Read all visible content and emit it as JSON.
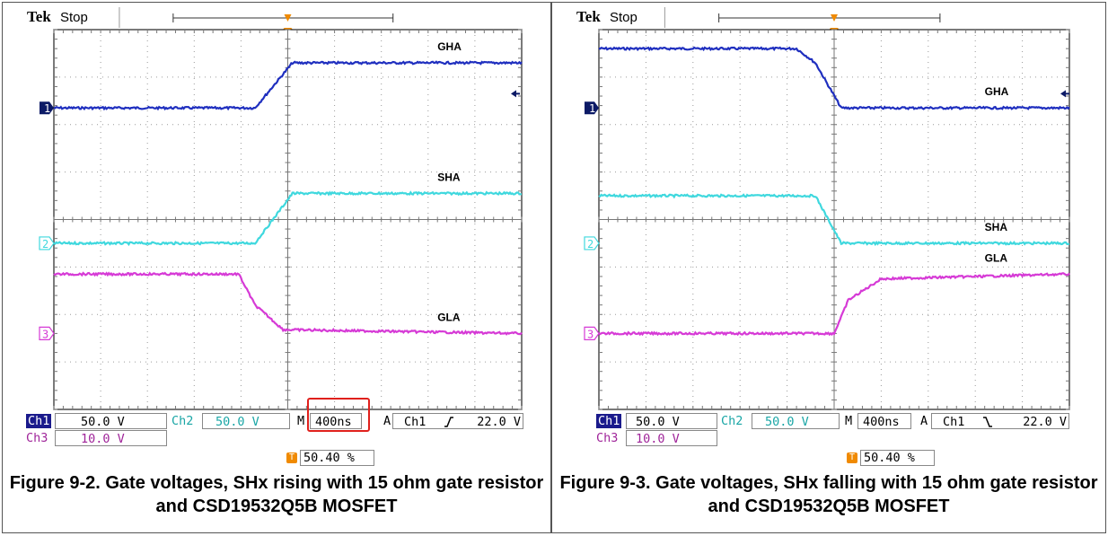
{
  "panels": [
    {
      "header": {
        "brand": "Tek",
        "status": "Stop"
      },
      "readouts": {
        "ch1_label": "Ch1",
        "ch1_scale": "50.0 V",
        "ch2_label": "Ch2",
        "ch2_scale": "50.0 V",
        "ch3_label": "Ch3",
        "ch3_scale": "10.0 V",
        "timebase_label": "M",
        "timebase": "400ns",
        "trigger_label": "A",
        "trigger_source": "Ch1",
        "trigger_slope": "rising",
        "trigger_level": "22.0 V",
        "trigger_position": "50.40 %"
      },
      "caption": "Figure 9-2. Gate voltages, SHx rising with 15 ohm gate resistor and CSD19532Q5B MOSFET"
    },
    {
      "header": {
        "brand": "Tek",
        "status": "Stop"
      },
      "readouts": {
        "ch1_label": "Ch1",
        "ch1_scale": "50.0 V",
        "ch2_label": "Ch2",
        "ch2_scale": "50.0 V",
        "ch3_label": "Ch3",
        "ch3_scale": "10.0 V",
        "timebase_label": "M",
        "timebase": "400ns",
        "trigger_label": "A",
        "trigger_source": "Ch1",
        "trigger_slope": "falling",
        "trigger_level": "22.0 V",
        "trigger_position": "50.40 %"
      },
      "caption": "Figure 9-3. Gate voltages, SHx falling with 15 ohm gate resistor and CSD19532Q5B MOSFET"
    }
  ],
  "colors": {
    "ch1": "#1f2fbf",
    "ch2": "#3fd8de",
    "ch3": "#d63ad6",
    "grid": "#9a9a9a",
    "trigger": "#f08a00",
    "highlight": "#e0201c"
  },
  "chart_data": [
    {
      "type": "line",
      "grid": true,
      "x_divisions": 10,
      "y_divisions": 8,
      "series": [
        {
          "name": "GHA",
          "channel": 1,
          "color": "#1f2fbf",
          "x": [
            0,
            4.3,
            5.1,
            10
          ],
          "y": [
            6.35,
            6.35,
            7.3,
            7.3
          ]
        },
        {
          "name": "SHA",
          "channel": 2,
          "color": "#3fd8de",
          "x": [
            0,
            4.3,
            5.1,
            10
          ],
          "y": [
            3.5,
            3.5,
            4.55,
            4.55
          ]
        },
        {
          "name": "GLA",
          "channel": 3,
          "color": "#d63ad6",
          "x": [
            0,
            3.95,
            4.3,
            4.9,
            10
          ],
          "y": [
            2.85,
            2.85,
            2.2,
            1.68,
            1.6
          ]
        }
      ]
    },
    {
      "type": "line",
      "grid": true,
      "x_divisions": 10,
      "y_divisions": 8,
      "series": [
        {
          "name": "GHA",
          "channel": 1,
          "color": "#1f2fbf",
          "x": [
            0,
            4.2,
            4.6,
            5.15,
            10
          ],
          "y": [
            7.6,
            7.6,
            7.3,
            6.35,
            6.35
          ]
        },
        {
          "name": "SHA",
          "channel": 2,
          "color": "#3fd8de",
          "x": [
            0,
            4.6,
            5.15,
            10
          ],
          "y": [
            4.5,
            4.5,
            3.5,
            3.5
          ]
        },
        {
          "name": "GLA",
          "channel": 3,
          "color": "#d63ad6",
          "x": [
            0,
            5.0,
            5.3,
            6.0,
            10
          ],
          "y": [
            1.6,
            1.6,
            2.3,
            2.75,
            2.85
          ]
        }
      ]
    }
  ]
}
